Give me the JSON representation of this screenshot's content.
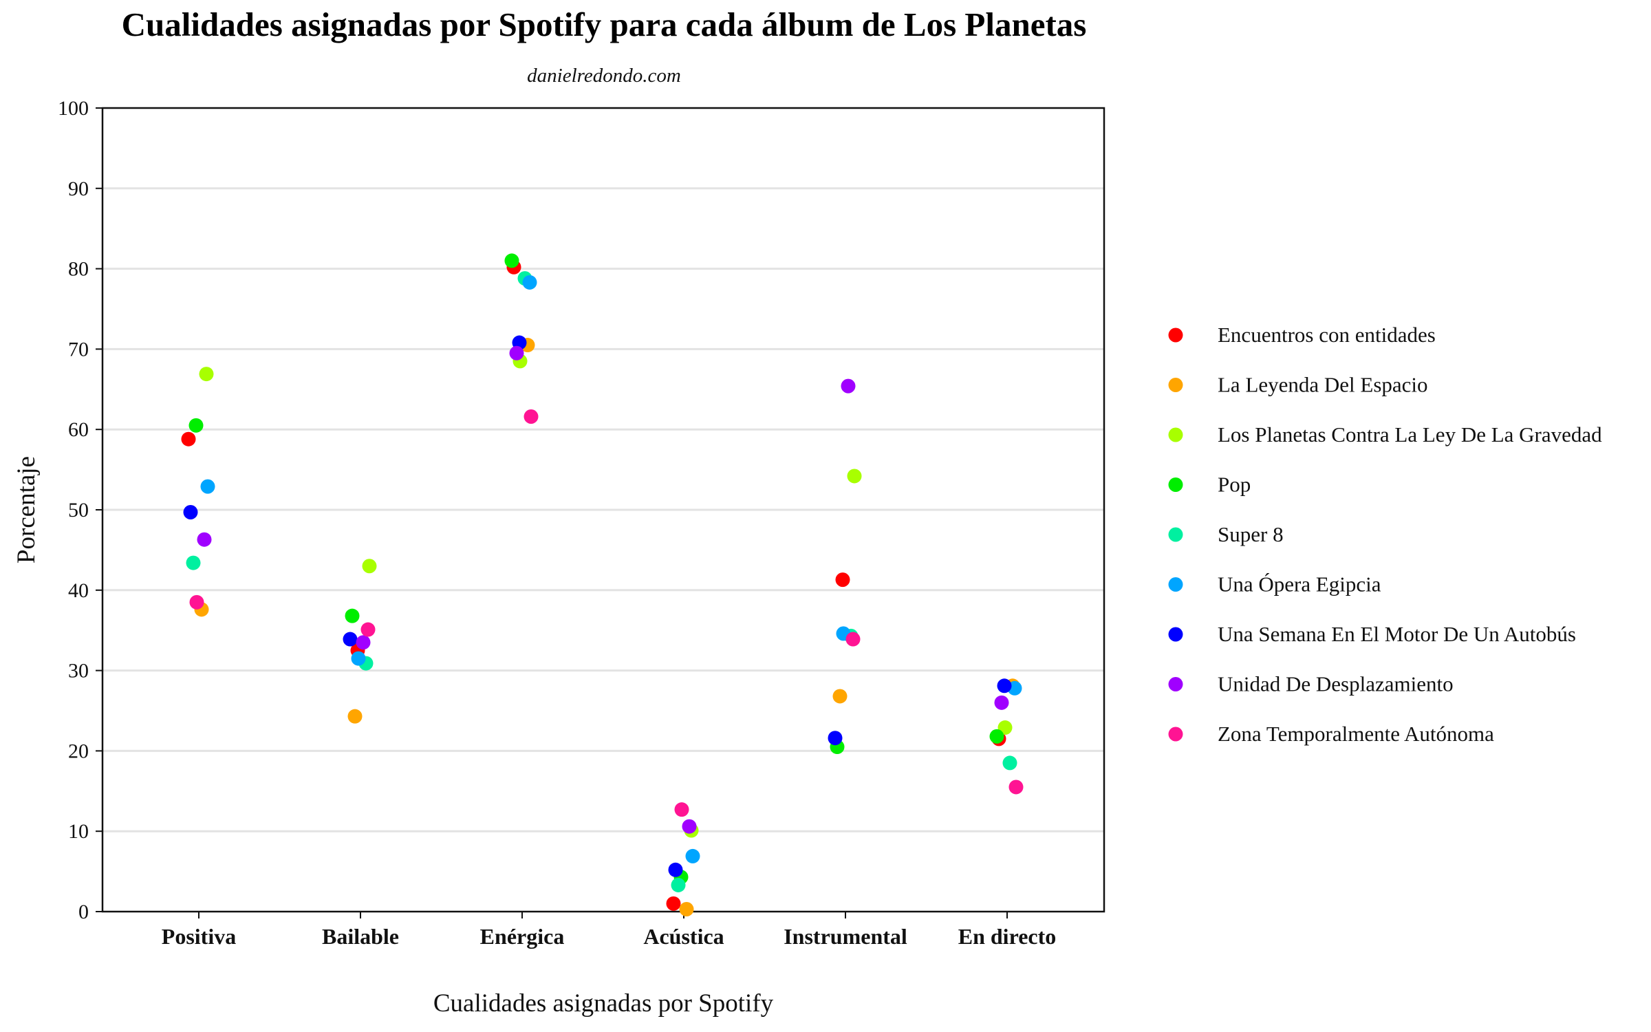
{
  "chart_data": {
    "type": "scatter",
    "title": "Cualidades asignadas por Spotify para cada álbum de Los Planetas",
    "subtitle": "danielredondo.com",
    "xlabel": "Cualidades asignadas por Spotify",
    "ylabel": "Porcentaje",
    "ylim": [
      0,
      100
    ],
    "yticks": [
      "0",
      "10",
      "20",
      "30",
      "40",
      "50",
      "60",
      "70",
      "80",
      "90",
      "100"
    ],
    "categories": [
      "Positiva",
      "Bailable",
      "Enérgica",
      "Acústica",
      "Instrumental",
      "En directo"
    ],
    "grid": true,
    "legend_position": "right",
    "series": [
      {
        "name": "Encuentros con entidades",
        "color": "#ff0000",
        "points": [
          {
            "cat": "Positiva",
            "y": 58.8
          },
          {
            "cat": "Bailable",
            "y": 32.5
          },
          {
            "cat": "Enérgica",
            "y": 80.2
          },
          {
            "cat": "Acústica",
            "y": 1.0
          },
          {
            "cat": "Instrumental",
            "y": 41.3
          },
          {
            "cat": "En directo",
            "y": 21.5
          }
        ]
      },
      {
        "name": "La Leyenda Del Espacio",
        "color": "#ffa500",
        "points": [
          {
            "cat": "Positiva",
            "y": 37.6
          },
          {
            "cat": "Bailable",
            "y": 24.3
          },
          {
            "cat": "Enérgica",
            "y": 70.5
          },
          {
            "cat": "Acústica",
            "y": 0.3
          },
          {
            "cat": "Instrumental",
            "y": 26.8
          },
          {
            "cat": "En directo",
            "y": 28.1
          }
        ]
      },
      {
        "name": "Los Planetas Contra La Ley De La Gravedad",
        "color": "#a8ff00",
        "points": [
          {
            "cat": "Positiva",
            "y": 66.9
          },
          {
            "cat": "Bailable",
            "y": 43.0
          },
          {
            "cat": "Enérgica",
            "y": 68.5
          },
          {
            "cat": "Acústica",
            "y": 10.1
          },
          {
            "cat": "Instrumental",
            "y": 54.2
          },
          {
            "cat": "En directo",
            "y": 22.9
          }
        ]
      },
      {
        "name": "Pop",
        "color": "#00ee00",
        "points": [
          {
            "cat": "Positiva",
            "y": 60.5
          },
          {
            "cat": "Bailable",
            "y": 36.8
          },
          {
            "cat": "Enérgica",
            "y": 81.0
          },
          {
            "cat": "Acústica",
            "y": 4.3
          },
          {
            "cat": "Instrumental",
            "y": 20.5
          },
          {
            "cat": "En directo",
            "y": 21.8
          }
        ]
      },
      {
        "name": "Super 8",
        "color": "#00f0a0",
        "points": [
          {
            "cat": "Positiva",
            "y": 43.4
          },
          {
            "cat": "Bailable",
            "y": 30.9
          },
          {
            "cat": "Enérgica",
            "y": 78.8
          },
          {
            "cat": "Acústica",
            "y": 3.3
          },
          {
            "cat": "Instrumental",
            "y": 34.3
          },
          {
            "cat": "En directo",
            "y": 18.5
          }
        ]
      },
      {
        "name": "Una Ópera Egipcia",
        "color": "#00a5ff",
        "points": [
          {
            "cat": "Positiva",
            "y": 52.9
          },
          {
            "cat": "Bailable",
            "y": 31.5
          },
          {
            "cat": "Enérgica",
            "y": 78.3
          },
          {
            "cat": "Acústica",
            "y": 6.9
          },
          {
            "cat": "Instrumental",
            "y": 34.6
          },
          {
            "cat": "En directo",
            "y": 27.8
          }
        ]
      },
      {
        "name": "Una Semana En El Motor De Un Autobús",
        "color": "#0000ff",
        "points": [
          {
            "cat": "Positiva",
            "y": 49.7
          },
          {
            "cat": "Bailable",
            "y": 33.9
          },
          {
            "cat": "Enérgica",
            "y": 70.8
          },
          {
            "cat": "Acústica",
            "y": 5.2
          },
          {
            "cat": "Instrumental",
            "y": 21.6
          },
          {
            "cat": "En directo",
            "y": 28.1
          }
        ]
      },
      {
        "name": "Unidad De Desplazamiento",
        "color": "#a000ff",
        "points": [
          {
            "cat": "Positiva",
            "y": 46.3
          },
          {
            "cat": "Bailable",
            "y": 33.5
          },
          {
            "cat": "Enérgica",
            "y": 69.5
          },
          {
            "cat": "Acústica",
            "y": 10.6
          },
          {
            "cat": "Instrumental",
            "y": 65.4
          },
          {
            "cat": "En directo",
            "y": 26.0
          }
        ]
      },
      {
        "name": "Zona Temporalmente Autónoma",
        "color": "#ff1493",
        "points": [
          {
            "cat": "Positiva",
            "y": 38.5
          },
          {
            "cat": "Bailable",
            "y": 35.1
          },
          {
            "cat": "Enérgica",
            "y": 61.6
          },
          {
            "cat": "Acústica",
            "y": 12.7
          },
          {
            "cat": "Instrumental",
            "y": 33.9
          },
          {
            "cat": "En directo",
            "y": 15.5
          }
        ]
      }
    ]
  }
}
